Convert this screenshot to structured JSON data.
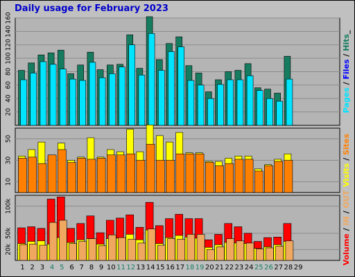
{
  "title": "Daily usage for February 2023",
  "colors": {
    "frame_bg": "#c0c0c0",
    "plot_bg": "#b4b4b4",
    "title": "#0000cc",
    "pages": "#00e5ff",
    "files": "#0000ff",
    "hits": "#167c60",
    "visits": "#ffff00",
    "sites": "#ff8000",
    "volume": "#ff0000",
    "in_out": "#f0a860",
    "weekend_label": "#167c60"
  },
  "chart_data": [
    {
      "type": "bar",
      "categories": [
        "1",
        "2",
        "3",
        "4",
        "5",
        "6",
        "7",
        "8",
        "9",
        "10",
        "11",
        "12",
        "13",
        "14",
        "15",
        "16",
        "17",
        "18",
        "19",
        "20",
        "21",
        "22",
        "23",
        "24",
        "25",
        "26",
        "27",
        "28",
        "29"
      ],
      "weekend_categories": [
        "4",
        "5",
        "11",
        "12",
        "18",
        "19",
        "25",
        "26"
      ],
      "ylim": [
        0,
        160
      ],
      "yticks": [
        20,
        40,
        60,
        80,
        100,
        120,
        140,
        160
      ],
      "right_label": [
        {
          "text": "Pages",
          "color": "#00e5ff"
        },
        {
          "text": " / ",
          "color": "#000000"
        },
        {
          "text": "Files",
          "color": "#0000ff"
        },
        {
          "text": " / ",
          "color": "#000000"
        },
        {
          "text": "Hits",
          "color": "#167c60"
        },
        {
          "text": "_",
          "color": "#000000"
        }
      ],
      "series": [
        {
          "name": "Hits",
          "color": "#167c60",
          "values": [
            82,
            93,
            105,
            108,
            112,
            77,
            90,
            109,
            83,
            90,
            91,
            135,
            85,
            162,
            98,
            122,
            132,
            89,
            78,
            50,
            68,
            80,
            82,
            92,
            56,
            54,
            48,
            103,
            0
          ]
        },
        {
          "name": "Pages",
          "color": "#00e5ff",
          "values": [
            68,
            78,
            95,
            91,
            84,
            69,
            67,
            94,
            71,
            77,
            87,
            120,
            75,
            137,
            82,
            110,
            117,
            67,
            60,
            40,
            61,
            68,
            68,
            74,
            52,
            40,
            36,
            69,
            0
          ]
        }
      ]
    },
    {
      "type": "bar",
      "categories": [
        "1",
        "2",
        "3",
        "4",
        "5",
        "6",
        "7",
        "8",
        "9",
        "10",
        "11",
        "12",
        "13",
        "14",
        "15",
        "16",
        "17",
        "18",
        "19",
        "20",
        "21",
        "22",
        "23",
        "24",
        "25",
        "26",
        "27",
        "28",
        "29"
      ],
      "ylim": [
        0,
        60
      ],
      "yticks": [
        10,
        30,
        50
      ],
      "right_label": [
        {
          "text": "Visits",
          "color": "#ffff00"
        },
        {
          "text": " / ",
          "color": "#000000"
        },
        {
          "text": "Sites",
          "color": "#ff8000"
        }
      ],
      "series": [
        {
          "name": "Visits",
          "color": "#ffff00",
          "values": [
            34,
            40,
            47,
            33,
            46,
            30,
            33,
            51,
            33,
            40,
            38,
            59,
            38,
            63,
            53,
            47,
            56,
            37,
            37,
            29,
            29,
            32,
            34,
            34,
            22,
            26,
            31,
            36,
            0
          ]
        },
        {
          "name": "Sites",
          "color": "#ff8000",
          "values": [
            32,
            33,
            27,
            35,
            40,
            28,
            32,
            31,
            32,
            35,
            35,
            36,
            30,
            45,
            30,
            30,
            36,
            36,
            36,
            28,
            25,
            27,
            31,
            31,
            20,
            25,
            29,
            30,
            0
          ]
        }
      ]
    },
    {
      "type": "bar",
      "categories": [
        "1",
        "2",
        "3",
        "4",
        "5",
        "6",
        "7",
        "8",
        "9",
        "10",
        "11",
        "12",
        "13",
        "14",
        "15",
        "16",
        "17",
        "18",
        "19",
        "20",
        "21",
        "22",
        "23",
        "24",
        "25",
        "26",
        "27",
        "28",
        "29"
      ],
      "ylim": [
        0,
        120
      ],
      "ytick_labels": [
        {
          "value": 20,
          "label": "20k"
        },
        {
          "value": 50,
          "label": "50k"
        },
        {
          "value": 100,
          "label": "100k"
        }
      ],
      "right_label": [
        {
          "text": "Volume",
          "color": "#ff0000"
        },
        {
          "text": " / ",
          "color": "#000000"
        },
        {
          "text": "IN",
          "color": "#f0a860"
        },
        {
          "text": " / ",
          "color": "#000000"
        },
        {
          "text": "OUT",
          "color": "#f0a860"
        }
      ],
      "series": [
        {
          "name": "Volume",
          "color": "#ff0000",
          "values": [
            60,
            62,
            59,
            113,
            117,
            59,
            68,
            82,
            51,
            74,
            78,
            84,
            61,
            107,
            64,
            77,
            85,
            77,
            77,
            38,
            48,
            68,
            62,
            50,
            35,
            42,
            43,
            68,
            0
          ]
        },
        {
          "name": "IN",
          "color": "#ffff00",
          "values": [
            31,
            35,
            36,
            30,
            42,
            33,
            38,
            40,
            30,
            40,
            41,
            48,
            38,
            56,
            31,
            42,
            46,
            43,
            41,
            24,
            29,
            33,
            32,
            31,
            22,
            25,
            29,
            35,
            0
          ]
        },
        {
          "name": "OUT",
          "color": "#f0a860",
          "values": [
            29,
            30,
            28,
            70,
            74,
            31,
            35,
            40,
            27,
            47,
            42,
            39,
            32,
            58,
            28,
            40,
            39,
            48,
            48,
            20,
            25,
            40,
            36,
            32,
            21,
            23,
            26,
            36,
            0
          ]
        }
      ]
    }
  ]
}
